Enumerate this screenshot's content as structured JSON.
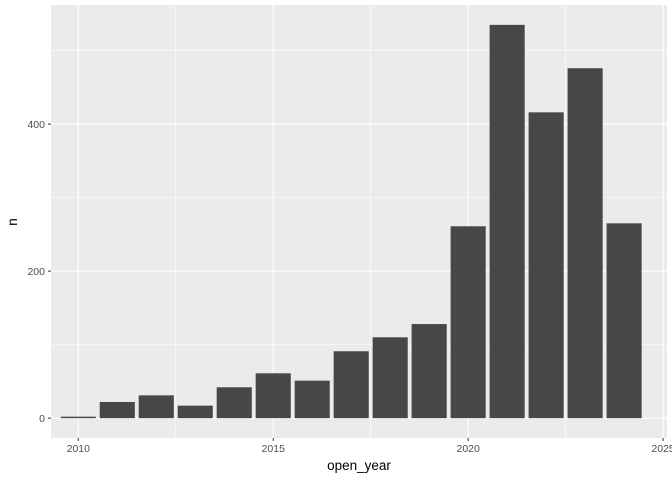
{
  "chart_data": {
    "type": "bar",
    "x": [
      2010,
      2011,
      2012,
      2013,
      2014,
      2015,
      2016,
      2017,
      2018,
      2019,
      2020,
      2021,
      2022,
      2023,
      2024
    ],
    "values": [
      2,
      22,
      31,
      17,
      42,
      61,
      51,
      91,
      110,
      128,
      261,
      535,
      416,
      476,
      265
    ],
    "xlabel": "open_year",
    "ylabel": "n",
    "xlim": [
      2009.3,
      2025.1
    ],
    "ylim": [
      -27,
      562
    ],
    "x_ticks": [
      2010,
      2015,
      2020,
      2025
    ],
    "y_ticks": [
      0,
      200,
      400
    ],
    "x_minor": [
      2012.5,
      2017.5,
      2022.5
    ],
    "y_minor": [
      100,
      300,
      500
    ],
    "grid": true,
    "legend": "none",
    "colors": {
      "panel_bg": "#ebebeb",
      "grid": "#ffffff",
      "bar": "#474747",
      "text": "#4d4d4d",
      "title": "#000000",
      "tick": "#333333"
    }
  }
}
